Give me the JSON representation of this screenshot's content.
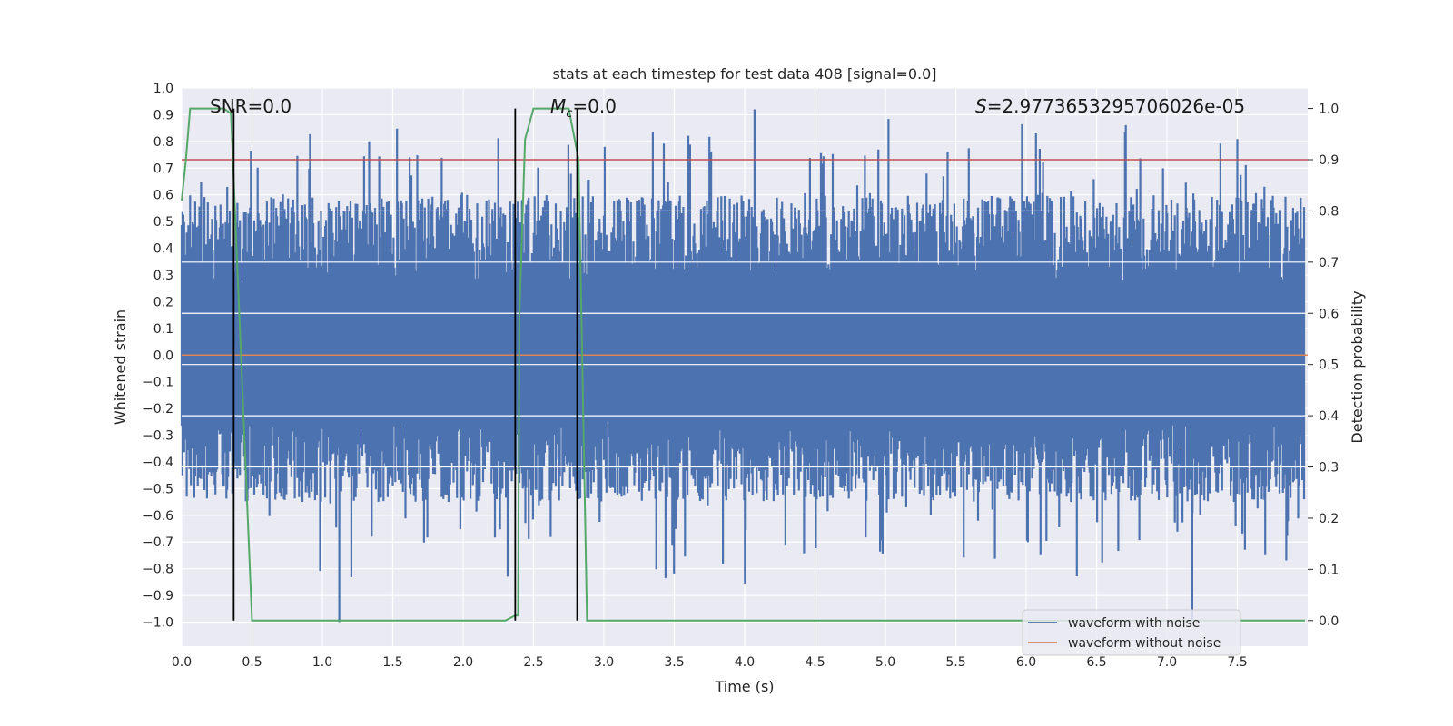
{
  "chart_data": {
    "type": "line",
    "title": "stats at each timestep for test data 408 [signal=0.0]",
    "xlabel": "Time (s)",
    "ylabel": "Whitened strain",
    "y2label": "Detection probability",
    "xlim": [
      0.0,
      8.0
    ],
    "ylim": [
      -1.09,
      1.0
    ],
    "y2lim": [
      -0.05,
      1.04
    ],
    "xticks": [
      "0.0",
      "0.5",
      "1.0",
      "1.5",
      "2.0",
      "2.5",
      "3.0",
      "3.5",
      "4.0",
      "4.5",
      "5.0",
      "5.5",
      "6.0",
      "6.5",
      "7.0",
      "7.5"
    ],
    "xtick_values": [
      0.0,
      0.5,
      1.0,
      1.5,
      2.0,
      2.5,
      3.0,
      3.5,
      4.0,
      4.5,
      5.0,
      5.5,
      6.0,
      6.5,
      7.0,
      7.5
    ],
    "yticks": [
      "1.0",
      "0.9",
      "0.8",
      "0.7",
      "0.6",
      "0.5",
      "0.4",
      "0.3",
      "0.2",
      "0.1",
      "0.0",
      "−0.1",
      "−0.2",
      "−0.3",
      "−0.4",
      "−0.5",
      "−0.6",
      "−0.7",
      "−0.8",
      "−0.9",
      "−1.0"
    ],
    "ytick_values": [
      1.0,
      0.9,
      0.8,
      0.7,
      0.6,
      0.5,
      0.4,
      0.3,
      0.2,
      0.1,
      0.0,
      -0.1,
      -0.2,
      -0.3,
      -0.4,
      -0.5,
      -0.6,
      -0.7,
      -0.8,
      -0.9,
      -1.0
    ],
    "y2ticks": [
      "1.0",
      "0.9",
      "0.8",
      "0.7",
      "0.6",
      "0.5",
      "0.4",
      "0.3",
      "0.2",
      "0.1",
      "0.0"
    ],
    "y2tick_values": [
      1.0,
      0.9,
      0.8,
      0.7,
      0.6,
      0.5,
      0.4,
      0.3,
      0.2,
      0.1,
      0.0
    ],
    "annotations": {
      "snr": "SNR=0.0",
      "mc_symbol": "M",
      "mc_sub": "c",
      "mc_value": "=0.0",
      "s_symbol": "S",
      "s_value": "=2.9773653295706026e-05"
    },
    "legend": {
      "placement": "lower-right",
      "entries": [
        "waveform with noise",
        "waveform without noise"
      ]
    },
    "series": [
      {
        "name": "waveform with noise",
        "color": "#4c72b0",
        "kind": "noise",
        "typical_range": [
          -0.55,
          0.6
        ],
        "peaks_max": 0.92,
        "peaks_min": -1.0
      },
      {
        "name": "waveform without noise",
        "color": "#dd8452",
        "kind": "constant",
        "y": 0.0
      }
    ],
    "detection_probability": {
      "color": "#55a868",
      "x": [
        0.0,
        0.03,
        0.06,
        0.3,
        0.35,
        0.5,
        2.3,
        2.37,
        2.39,
        2.4,
        2.44,
        2.5,
        2.75,
        2.82,
        2.88,
        7.98
      ],
      "y": [
        0.82,
        0.9,
        1.0,
        1.0,
        0.99,
        0.0,
        0.0,
        0.01,
        0.01,
        0.6,
        0.94,
        1.0,
        1.0,
        0.9,
        0.0,
        0.0
      ]
    },
    "threshold": {
      "color": "#c44e52",
      "y2": 0.9
    },
    "vertical_markers": {
      "color": "#000000",
      "lines": [
        {
          "x": 0.37,
          "y2_top": 1.0
        },
        {
          "x": 2.37,
          "y2_top": 1.0
        },
        {
          "x": 2.81,
          "y2_top": 1.0
        }
      ]
    },
    "secondary_gridlines_y2": [
      0.3,
      0.4,
      0.5,
      0.6,
      0.7,
      0.8
    ],
    "background_color": "#eaeaf2",
    "grid": true
  }
}
